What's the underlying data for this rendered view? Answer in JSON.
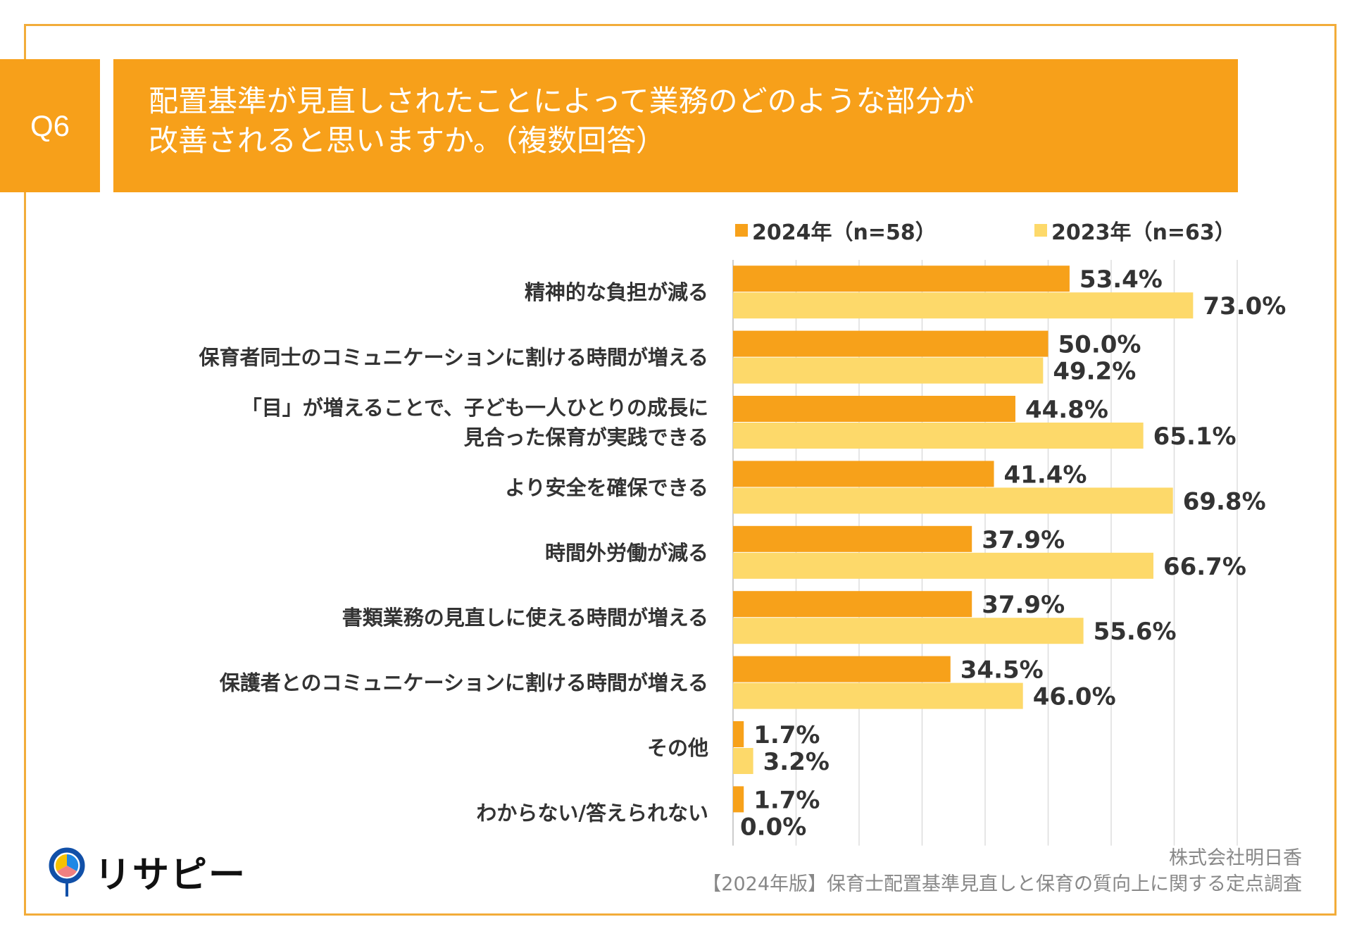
{
  "header": {
    "q_label": "Q6",
    "title_line1": "配置基準が見直しされたことによって業務のどのような部分が",
    "title_line2": "改善されると思いますか。（複数回答）"
  },
  "colors": {
    "accent": "#f7a01a",
    "series_2024": "#f7a11a",
    "series_2023": "#fdd96a",
    "frame": "#f2ac3a"
  },
  "chart_data": {
    "type": "bar",
    "orientation": "horizontal",
    "categories": [
      "精神的な負担が減る",
      "保育者同士のコミュニケーションに割ける時間が増える",
      "「目」が増えることで、子ども一人ひとりの成長に\n見合った保育が実践できる",
      "より安全を確保できる",
      "時間外労働が減る",
      "書類業務の見直しに使える時間が増える",
      "保護者とのコミュニケーションに割ける時間が増える",
      "その他",
      "わからない/答えられない"
    ],
    "series": [
      {
        "name": "2024年（n=58）",
        "values": [
          53.4,
          50.0,
          44.8,
          41.4,
          37.9,
          37.9,
          34.5,
          1.7,
          1.7
        ]
      },
      {
        "name": "2023年（n=63）",
        "values": [
          73.0,
          49.2,
          65.1,
          69.8,
          66.7,
          55.6,
          46.0,
          3.2,
          0.0
        ]
      }
    ],
    "xlim": [
      0,
      80
    ],
    "grid": "vertical every 10",
    "legend": "top",
    "value_suffix": "%"
  },
  "footer": {
    "company": "株式会社明日香",
    "source": "【2024年版】保育士配置基準見直しと保育の質向上に関する定点調査"
  },
  "logo": {
    "text": "リサピー"
  }
}
